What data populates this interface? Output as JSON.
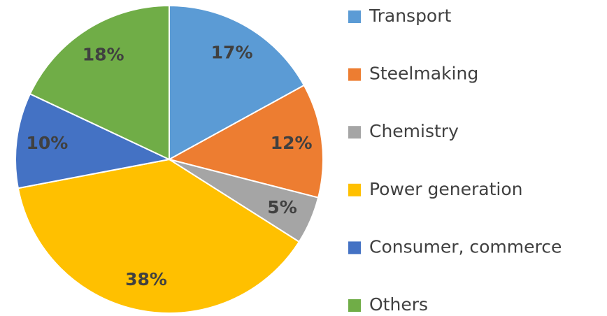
{
  "chart_data": {
    "type": "pie",
    "categories": [
      "Transport",
      "Steelmaking",
      "Chemistry",
      "Power generation",
      "Consumer, commerce",
      "Others"
    ],
    "values": [
      17,
      12,
      5,
      38,
      10,
      18
    ],
    "value_labels": [
      "17%",
      "12%",
      "5%",
      "38%",
      "10%",
      "18%"
    ],
    "colors": [
      "#5b9bd5",
      "#ed7d31",
      "#a5a5a5",
      "#ffc000",
      "#4472c4",
      "#70ad47"
    ],
    "legend": "right"
  }
}
